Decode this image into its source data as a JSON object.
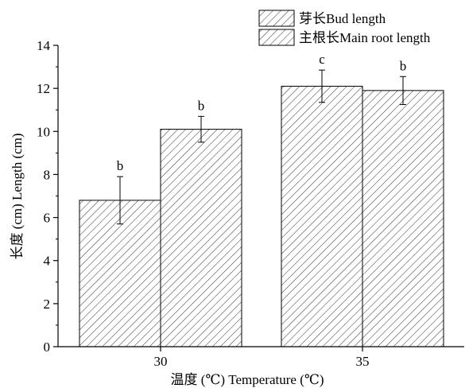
{
  "chart_data": {
    "type": "bar",
    "categories": [
      "30",
      "35"
    ],
    "series": [
      {
        "name": "芽长Bud length",
        "values": [
          6.8,
          12.1
        ],
        "errors": [
          1.1,
          0.75
        ],
        "labels": [
          "b",
          "c"
        ]
      },
      {
        "name": "主根长Main root length",
        "values": [
          10.1,
          11.9
        ],
        "errors": [
          0.6,
          0.65
        ],
        "labels": [
          "b",
          "b"
        ]
      }
    ],
    "xlabel": "温度 (℃) Temperature (℃)",
    "ylabel": "长度 (cm) Length (cm)",
    "ylim": [
      0,
      14
    ],
    "yticks": [
      "0",
      "2",
      "4",
      "6",
      "8",
      "10",
      "12",
      "14"
    ],
    "grid": false,
    "legend_position": "top-right"
  }
}
